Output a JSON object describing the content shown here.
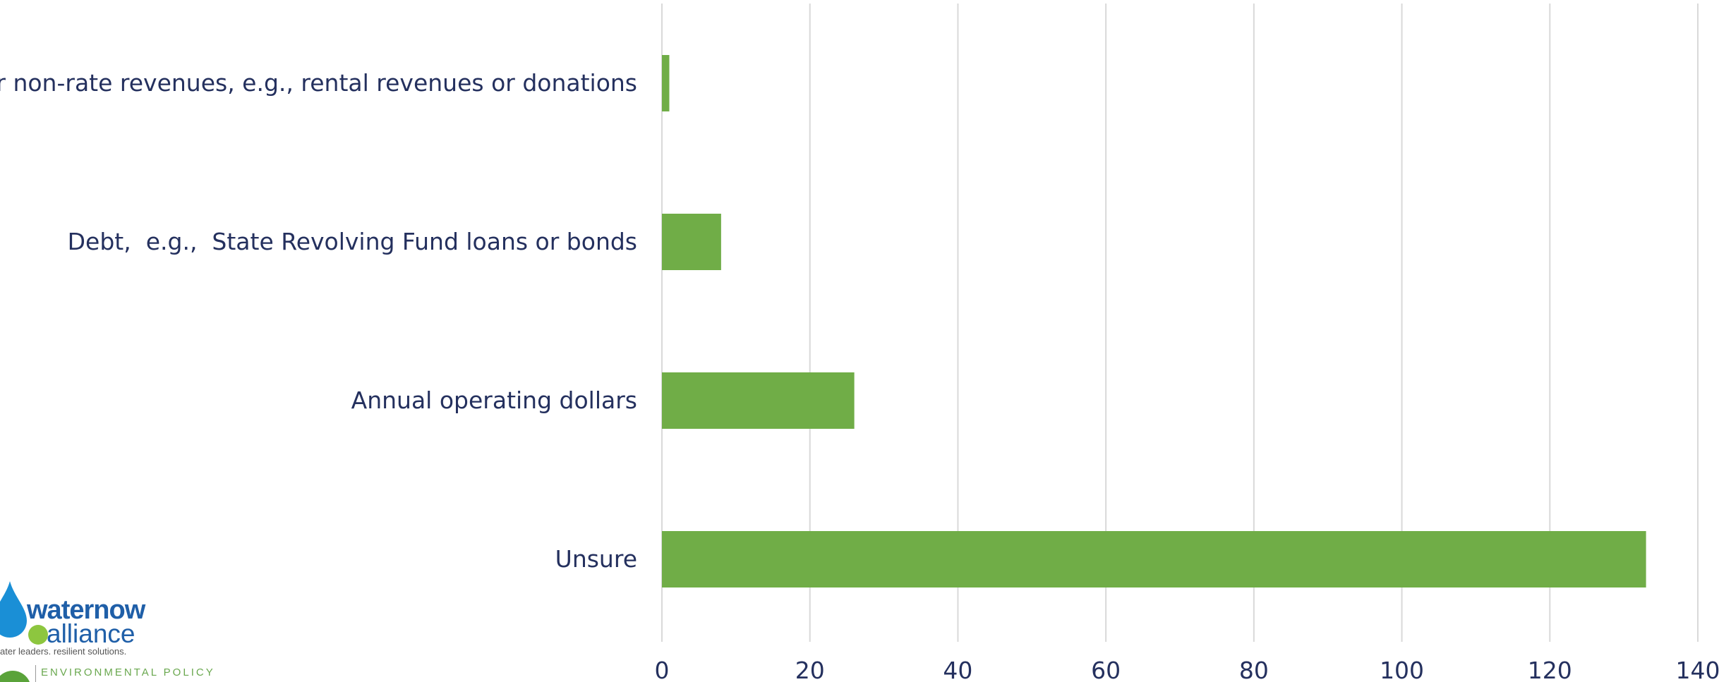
{
  "chart_data": {
    "type": "bar",
    "orientation": "horizontal",
    "categories": [
      "Other non-rate revenues, e.g., rental revenues or donations",
      "Debt,  e.g.,  State Revolving Fund loans or bonds",
      "Annual operating dollars",
      "Unsure"
    ],
    "values": [
      1,
      8,
      26,
      133
    ],
    "xlim": [
      0,
      140
    ],
    "x_ticks": [
      0,
      20,
      40,
      60,
      80,
      100,
      120,
      140
    ],
    "grid": true,
    "bar_color": "#70ad47",
    "title": "",
    "xlabel": "",
    "ylabel": ""
  },
  "logos": {
    "brand_line1": "waternow",
    "brand_line2": "alliance",
    "brand_tagline": "ater leaders. resilient solutions.",
    "partner_text": "ENVIRONMENTAL POLICY",
    "brand_color": "#1f5fa8",
    "accent_color": "#8dc63f"
  }
}
